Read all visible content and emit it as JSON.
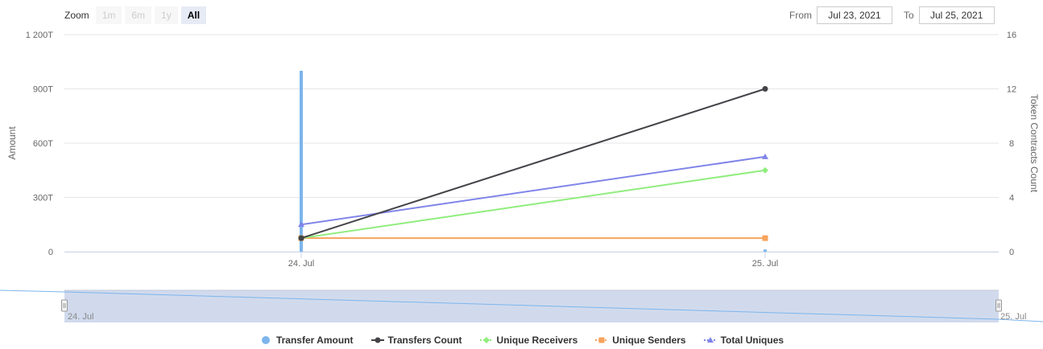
{
  "zoom": {
    "label": "Zoom",
    "buttons": [
      {
        "label": "1m",
        "active": false
      },
      {
        "label": "6m",
        "active": false
      },
      {
        "label": "1y",
        "active": false
      },
      {
        "label": "All",
        "active": true
      }
    ]
  },
  "range": {
    "from_label": "From",
    "from_value": "Jul 23, 2021",
    "to_label": "To",
    "to_value": "Jul 25, 2021"
  },
  "chart_data": {
    "type": "line",
    "categories": [
      "24. Jul",
      "25. Jul"
    ],
    "left_axis": {
      "label": "Amount",
      "ticks": [
        "0",
        "300T",
        "600T",
        "900T",
        "1 200T"
      ],
      "range": [
        0,
        1200
      ]
    },
    "right_axis": {
      "label": "Token Contracts Count",
      "ticks": [
        "0",
        "4",
        "8",
        "12",
        "16"
      ],
      "range": [
        0,
        16
      ]
    },
    "series": [
      {
        "name": "Transfer Amount",
        "type": "column",
        "axis": "left",
        "color": "#7cb5ec",
        "values": [
          1000,
          12
        ]
      },
      {
        "name": "Transfers Count",
        "type": "line",
        "axis": "right",
        "color": "#434348",
        "marker": "circle",
        "values": [
          1,
          12
        ]
      },
      {
        "name": "Unique Receivers",
        "type": "line",
        "axis": "right",
        "color": "#90ed7d",
        "marker": "diamond",
        "values": [
          1,
          6
        ]
      },
      {
        "name": "Unique Senders",
        "type": "line",
        "axis": "right",
        "color": "#f7a35c",
        "marker": "square",
        "values": [
          1,
          1
        ]
      },
      {
        "name": "Total Uniques",
        "type": "line",
        "axis": "right",
        "color": "#8085e9",
        "marker": "triangle",
        "values": [
          2,
          7
        ]
      }
    ],
    "navigator": {
      "labels": [
        "24. Jul",
        "25. Jul"
      ]
    },
    "grid": true,
    "legend_position": "bottom"
  }
}
